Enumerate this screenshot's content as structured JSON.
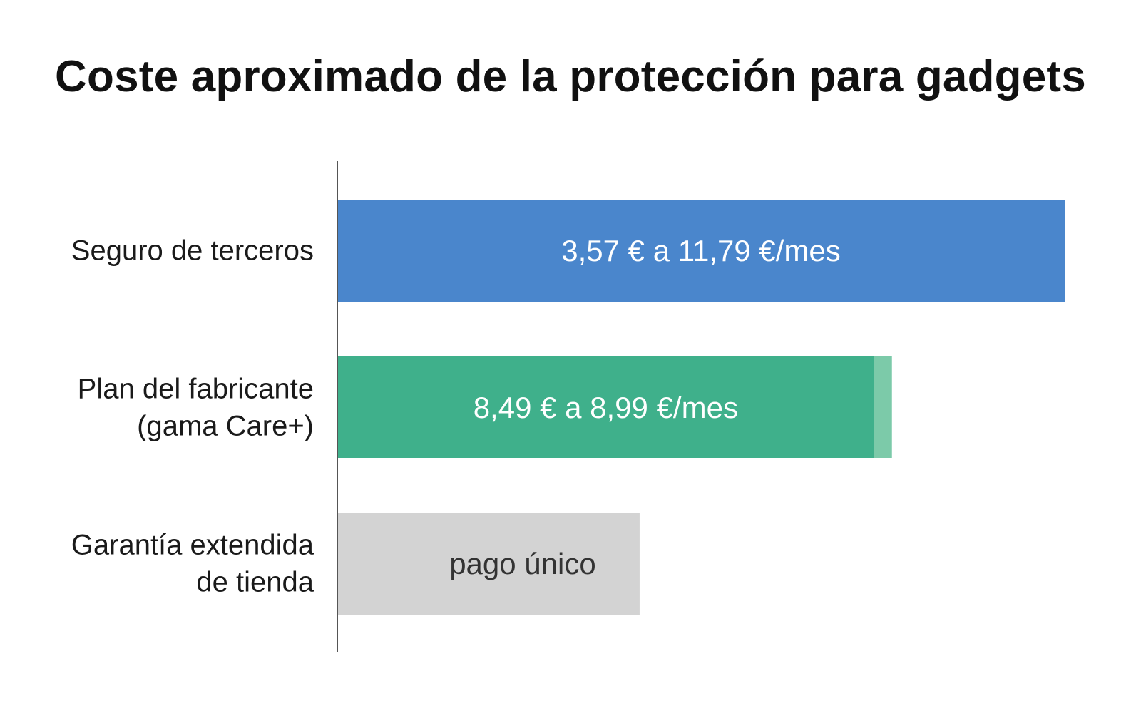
{
  "chart_data": {
    "type": "bar",
    "orientation": "horizontal",
    "title": "Coste aproximado de la protección para gadgets",
    "xlabel": "",
    "ylabel": "",
    "grid": false,
    "legend": "none",
    "categories": [
      {
        "lines": [
          "Seguro de terceros"
        ]
      },
      {
        "lines": [
          "Plan del fabricante",
          "(gama Care+)"
        ]
      },
      {
        "lines": [
          "Garantía extendida",
          "de tienda"
        ]
      }
    ],
    "bars": [
      {
        "value": 11.79,
        "segment_end": null,
        "label": "3,57 € a 11,79 €/mes",
        "color": "#4a86cc",
        "label_color": "#ffffff"
      },
      {
        "value": 8.7,
        "segment_end": 8.99,
        "label": "8,49 € a 8,99 €/mes",
        "color": "#3fb08b",
        "segment_color": "#7ccaa9",
        "label_color": "#ffffff"
      },
      {
        "value": 4.9,
        "segment_end": null,
        "label": "pago único",
        "color": "#d3d3d3",
        "label_color": "#333333"
      }
    ],
    "xlim": [
      0,
      11.79
    ],
    "axis_color": "#555555"
  }
}
